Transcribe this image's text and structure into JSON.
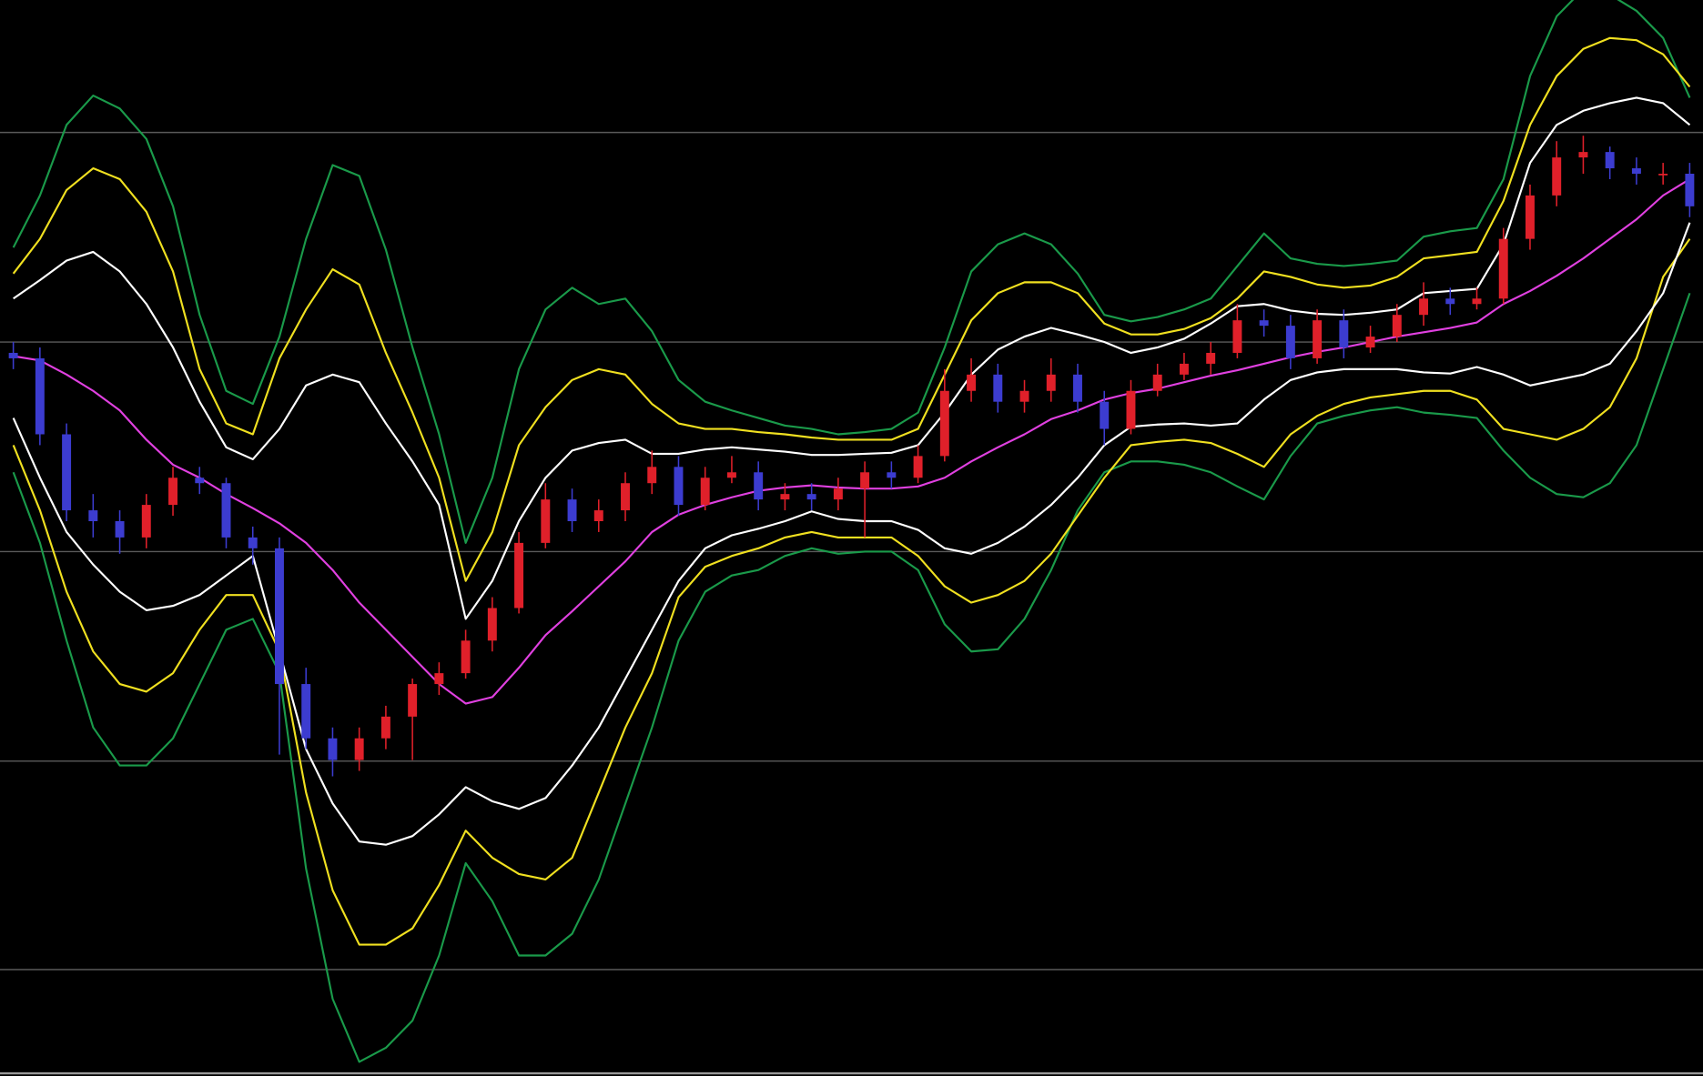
{
  "chart_data": {
    "type": "candlestick",
    "background": "#000000",
    "grid": true,
    "grid_color": "#5a5a5a",
    "ylim": [
      9,
      1000
    ],
    "yticks": [
      107,
      299,
      492,
      685,
      878
    ],
    "up_color": "#e0202a",
    "down_color": "#3c3cd0",
    "open": [
      675,
      670,
      600,
      530,
      520,
      505,
      535,
      560,
      555,
      505,
      495,
      370,
      320,
      300,
      320,
      340,
      370,
      380,
      410,
      440,
      500,
      540,
      520,
      530,
      555,
      570,
      535,
      560,
      565,
      540,
      545,
      540,
      550,
      565,
      560,
      580,
      640,
      655,
      630,
      640,
      655,
      630,
      605,
      640,
      655,
      665,
      675,
      705,
      700,
      670,
      705,
      680,
      690,
      710,
      725,
      720,
      725,
      780,
      820,
      855,
      860,
      845,
      840,
      840
    ],
    "high": [
      685,
      680,
      610,
      545,
      530,
      545,
      570,
      570,
      560,
      515,
      505,
      385,
      330,
      330,
      350,
      375,
      390,
      420,
      450,
      510,
      555,
      550,
      540,
      565,
      585,
      580,
      570,
      580,
      575,
      555,
      555,
      560,
      575,
      575,
      590,
      660,
      670,
      665,
      650,
      670,
      665,
      640,
      650,
      665,
      675,
      685,
      720,
      715,
      710,
      715,
      715,
      700,
      720,
      740,
      735,
      735,
      790,
      830,
      870,
      875,
      865,
      855,
      850,
      850
    ],
    "low": [
      660,
      590,
      520,
      505,
      490,
      495,
      525,
      545,
      495,
      480,
      305,
      310,
      285,
      290,
      310,
      300,
      360,
      375,
      400,
      435,
      495,
      510,
      510,
      520,
      545,
      525,
      530,
      555,
      530,
      530,
      530,
      530,
      505,
      550,
      555,
      575,
      630,
      620,
      620,
      630,
      620,
      590,
      600,
      635,
      650,
      655,
      670,
      690,
      660,
      665,
      670,
      675,
      685,
      700,
      710,
      715,
      720,
      770,
      810,
      840,
      835,
      830,
      830,
      800
    ],
    "close": [
      670,
      600,
      530,
      520,
      505,
      535,
      560,
      555,
      505,
      495,
      370,
      320,
      300,
      320,
      340,
      370,
      380,
      410,
      440,
      500,
      540,
      520,
      530,
      555,
      570,
      535,
      560,
      565,
      540,
      545,
      540,
      550,
      565,
      560,
      580,
      640,
      655,
      630,
      640,
      655,
      630,
      605,
      640,
      655,
      665,
      675,
      705,
      700,
      670,
      705,
      680,
      690,
      710,
      725,
      720,
      725,
      780,
      820,
      855,
      860,
      845,
      840,
      840,
      810
    ],
    "series": [
      {
        "color": "#1a9a4a",
        "values": [
          772,
          820,
          885,
          912,
          900,
          872,
          810,
          710,
          640,
          628,
          690,
          780,
          848,
          838,
          770,
          680,
          600,
          500,
          560,
          660,
          715,
          735,
          720,
          725,
          695,
          650,
          630,
          622,
          615,
          608,
          605,
          600,
          602,
          605,
          620,
          680,
          750,
          775,
          785,
          775,
          748,
          710,
          704,
          708,
          715,
          725,
          755,
          785,
          762,
          757,
          755,
          757,
          760,
          782,
          787,
          790,
          835,
          930,
          985,
          1010,
          1005,
          990,
          965,
          910
        ]
      },
      {
        "color": "#1a9a4a",
        "values": [
          565,
          500,
          410,
          330,
          295,
          295,
          320,
          370,
          420,
          430,
          380,
          200,
          80,
          22,
          35,
          60,
          120,
          205,
          170,
          120,
          120,
          140,
          190,
          260,
          330,
          410,
          455,
          470,
          475,
          488,
          495,
          490,
          492,
          492,
          475,
          425,
          400,
          402,
          430,
          475,
          530,
          565,
          575,
          575,
          572,
          565,
          552,
          540,
          580,
          610,
          617,
          622,
          625,
          620,
          618,
          615,
          585,
          560,
          545,
          542,
          555,
          590,
          660,
          730
        ]
      },
      {
        "color": "#f0e020",
        "values": [
          748,
          780,
          825,
          845,
          835,
          805,
          750,
          660,
          610,
          600,
          670,
          715,
          752,
          738,
          675,
          620,
          560,
          465,
          510,
          590,
          625,
          650,
          660,
          655,
          628,
          610,
          605,
          605,
          602,
          600,
          597,
          595,
          595,
          595,
          605,
          655,
          705,
          730,
          740,
          740,
          730,
          702,
          692,
          692,
          697,
          707,
          725,
          750,
          745,
          738,
          735,
          737,
          745,
          762,
          765,
          768,
          815,
          885,
          930,
          955,
          965,
          963,
          950,
          920
        ]
      },
      {
        "color": "#f0e020",
        "values": [
          590,
          530,
          455,
          400,
          370,
          363,
          380,
          420,
          452,
          452,
          400,
          270,
          180,
          130,
          130,
          145,
          185,
          235,
          210,
          195,
          190,
          210,
          270,
          330,
          380,
          450,
          478,
          488,
          495,
          505,
          510,
          505,
          505,
          505,
          488,
          460,
          445,
          452,
          465,
          490,
          525,
          560,
          590,
          593,
          595,
          592,
          582,
          570,
          600,
          617,
          628,
          634,
          637,
          640,
          640,
          632,
          605,
          600,
          595,
          605,
          625,
          670,
          745,
          780
        ]
      },
      {
        "color": "#ffffff",
        "values": [
          725,
          742,
          760,
          768,
          750,
          720,
          680,
          630,
          588,
          577,
          605,
          645,
          655,
          648,
          610,
          575,
          535,
          430,
          465,
          520,
          560,
          585,
          592,
          595,
          582,
          582,
          586,
          588,
          586,
          584,
          581,
          581,
          582,
          583,
          590,
          620,
          655,
          678,
          690,
          698,
          692,
          685,
          675,
          680,
          688,
          702,
          718,
          720,
          714,
          711,
          710,
          712,
          715,
          730,
          732,
          734,
          775,
          850,
          885,
          898,
          905,
          910,
          905,
          885
        ]
      },
      {
        "color": "#ffffff",
        "values": [
          615,
          560,
          510,
          480,
          455,
          438,
          442,
          452,
          470,
          488,
          400,
          310,
          260,
          225,
          222,
          230,
          250,
          275,
          262,
          255,
          265,
          295,
          330,
          375,
          420,
          465,
          495,
          507,
          513,
          520,
          529,
          522,
          520,
          520,
          512,
          495,
          490,
          500,
          515,
          535,
          560,
          590,
          607,
          609,
          610,
          608,
          610,
          632,
          650,
          657,
          660,
          660,
          660,
          657,
          656,
          662,
          655,
          645,
          650,
          655,
          665,
          695,
          730,
          795
        ]
      },
      {
        "color": "#e040e0",
        "values": [
          672,
          668,
          655,
          640,
          622,
          595,
          572,
          560,
          545,
          532,
          518,
          500,
          475,
          445,
          420,
          395,
          370,
          352,
          358,
          385,
          415,
          437,
          460,
          483,
          510,
          526,
          535,
          542,
          548,
          551,
          553,
          551,
          550,
          550,
          552,
          560,
          575,
          588,
          600,
          614,
          622,
          632,
          638,
          642,
          648,
          654,
          659,
          665,
          671,
          676,
          680,
          685,
          690,
          694,
          698,
          703,
          720,
          732,
          746,
          762,
          780,
          798,
          820,
          835
        ]
      }
    ]
  }
}
